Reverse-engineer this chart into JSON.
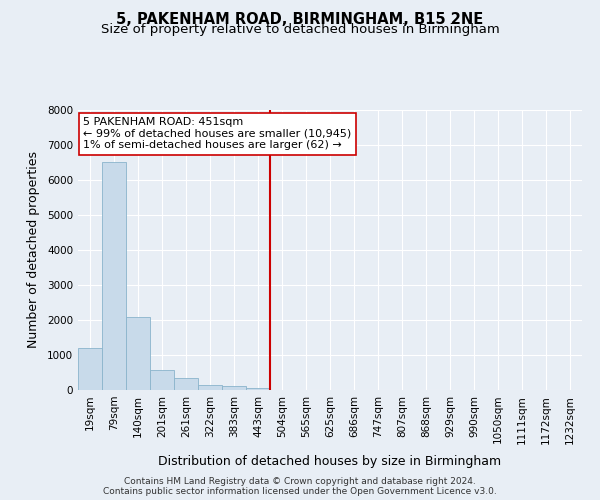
{
  "title": "5, PAKENHAM ROAD, BIRMINGHAM, B15 2NE",
  "subtitle": "Size of property relative to detached houses in Birmingham",
  "xlabel": "Distribution of detached houses by size in Birmingham",
  "ylabel": "Number of detached properties",
  "footnote1": "Contains HM Land Registry data © Crown copyright and database right 2024.",
  "footnote2": "Contains public sector information licensed under the Open Government Licence v3.0.",
  "bin_labels": [
    "19sqm",
    "79sqm",
    "140sqm",
    "201sqm",
    "261sqm",
    "322sqm",
    "383sqm",
    "443sqm",
    "504sqm",
    "565sqm",
    "625sqm",
    "686sqm",
    "747sqm",
    "807sqm",
    "868sqm",
    "929sqm",
    "990sqm",
    "1050sqm",
    "1111sqm",
    "1172sqm",
    "1232sqm"
  ],
  "bar_values": [
    1200,
    6500,
    2100,
    580,
    340,
    145,
    115,
    60,
    0,
    0,
    0,
    0,
    0,
    0,
    0,
    0,
    0,
    0,
    0,
    0,
    0
  ],
  "bar_color": "#c8daea",
  "bar_edge_color": "#8ab4cc",
  "highlight_line_color": "#cc0000",
  "annotation_text_line1": "5 PAKENHAM ROAD: 451sqm",
  "annotation_text_line2": "← 99% of detached houses are smaller (10,945)",
  "annotation_text_line3": "1% of semi-detached houses are larger (62) →",
  "ylim": [
    0,
    8000
  ],
  "yticks": [
    0,
    1000,
    2000,
    3000,
    4000,
    5000,
    6000,
    7000,
    8000
  ],
  "bg_color": "#e8eef5",
  "plot_bg_color": "#e8eef5",
  "grid_color": "#ffffff",
  "title_fontsize": 10.5,
  "subtitle_fontsize": 9.5,
  "axis_label_fontsize": 9,
  "tick_fontsize": 7.5,
  "annotation_fontsize": 8,
  "footnote_fontsize": 6.5
}
